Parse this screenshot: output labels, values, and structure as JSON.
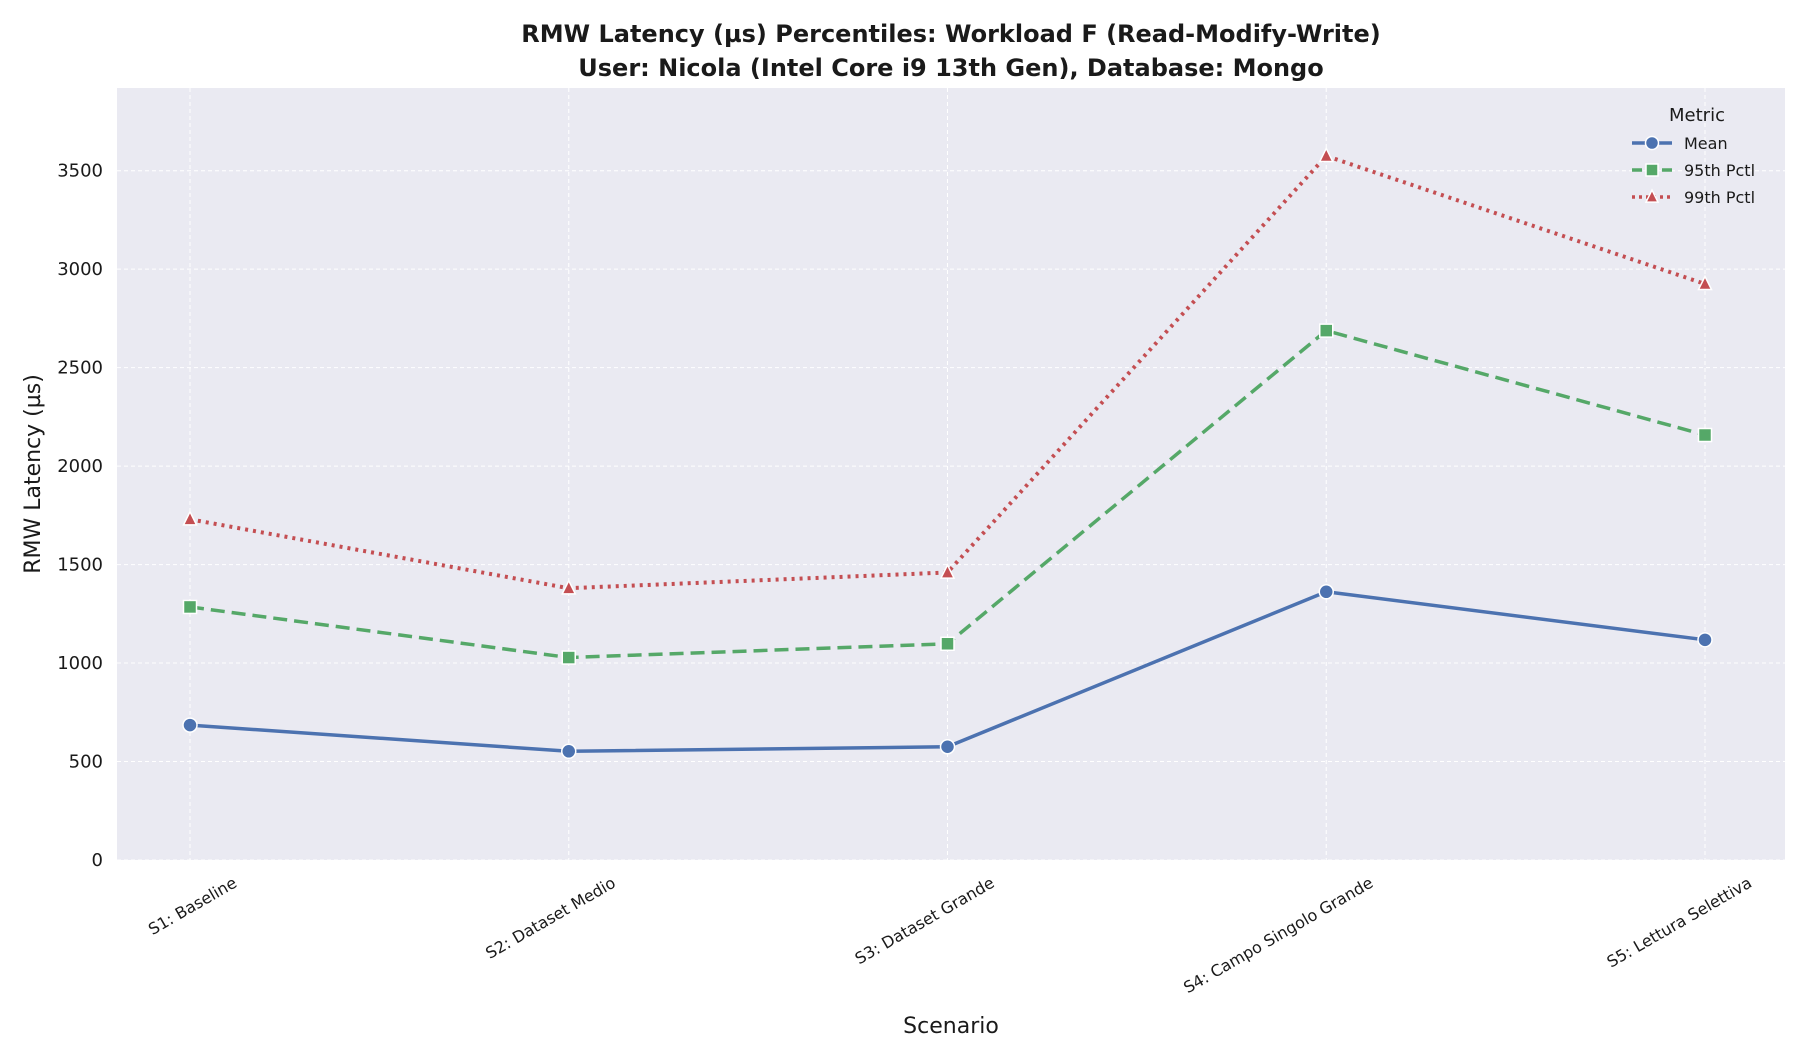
{
  "chart_data": {
    "type": "line",
    "title": "RMW Latency (µs) Percentiles: Workload F (Read-Modify-Write)",
    "subtitle": "User: Nicola (Intel Core i9 13th Gen), Database: Mongo",
    "xlabel": "Scenario",
    "ylabel": "RMW Latency (µs)",
    "categories": [
      "S1: Baseline",
      "S2: Dataset Medio",
      "S3: Dataset Grande",
      "S4: Campo Singolo Grande",
      "S5: Lettura Selettiva"
    ],
    "yticks": [
      0,
      500,
      1000,
      1500,
      2000,
      2500,
      3000,
      3500
    ],
    "ylim": [
      0,
      3920
    ],
    "grid": true,
    "legend": {
      "title": "Metric",
      "placement": "top-right"
    },
    "series": [
      {
        "name": "Mean",
        "values": [
          685,
          552,
          575,
          1362,
          1118
        ],
        "color": "#4c72b0",
        "marker": "circle",
        "dash": "solid"
      },
      {
        "name": "95th Pctl",
        "values": [
          1285,
          1028,
          1098,
          2688,
          2158
        ],
        "color": "#55a868",
        "marker": "square",
        "dash": "dashed"
      },
      {
        "name": "99th Pctl",
        "values": [
          1730,
          1380,
          1460,
          3575,
          2925
        ],
        "color": "#c44e52",
        "marker": "triangle",
        "dash": "dotted"
      }
    ]
  }
}
